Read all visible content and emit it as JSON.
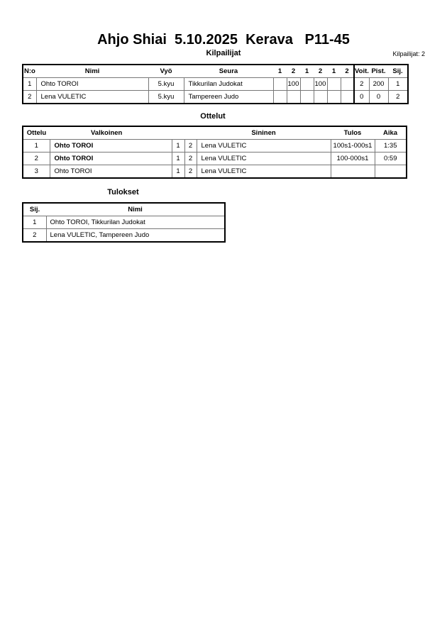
{
  "header": {
    "title": "Ahjo Shiai  5.10.2025  Kerava   P11-45",
    "subtitle": "Kilpailijat",
    "count": "Kilpailijat: 2"
  },
  "competitors": {
    "columns": [
      "N:o",
      "Nimi",
      "Vyö",
      "Seura",
      "1",
      "2",
      "1",
      "2",
      "1",
      "2",
      "Voit.",
      "Pist.",
      "Sij."
    ],
    "rows": [
      {
        "no": "1",
        "name": "Ohto TOROI",
        "belt": "5.kyu",
        "club": "Tikkurilan Judokat",
        "scores": [
          "",
          "100",
          "",
          "100",
          "",
          ""
        ],
        "wins": "2",
        "points": "200",
        "place": "1"
      },
      {
        "no": "2",
        "name": "Lena VULETIC",
        "belt": "5.kyu",
        "club": "Tampereen Judo",
        "scores": [
          "",
          "",
          "",
          "",
          "",
          ""
        ],
        "wins": "0",
        "points": "0",
        "place": "2"
      }
    ]
  },
  "matches": {
    "heading": "Ottelut",
    "columns": [
      "Ottelu",
      "Valkoinen",
      "Sininen",
      "Tulos",
      "Aika"
    ],
    "rows": [
      {
        "no": "1",
        "white": "Ohto TOROI",
        "w": "1",
        "b": "2",
        "blue": "Lena VULETIC",
        "result": "100s1-000s1",
        "time": "1:35"
      },
      {
        "no": "2",
        "white": "Ohto TOROI",
        "w": "1",
        "b": "2",
        "blue": "Lena VULETIC",
        "result": "100-000s1",
        "time": "0:59"
      },
      {
        "no": "3",
        "white": "Ohto TOROI",
        "w": "1",
        "b": "2",
        "blue": "Lena VULETIC",
        "result": "",
        "time": ""
      }
    ]
  },
  "results": {
    "heading": "Tulokset",
    "columns": [
      "Sij.",
      "Nimi"
    ],
    "rows": [
      {
        "place": "1",
        "name": "Ohto TOROI, Tikkurilan Judokat"
      },
      {
        "place": "2",
        "name": "Lena VULETIC, Tampereen Judo"
      }
    ]
  }
}
